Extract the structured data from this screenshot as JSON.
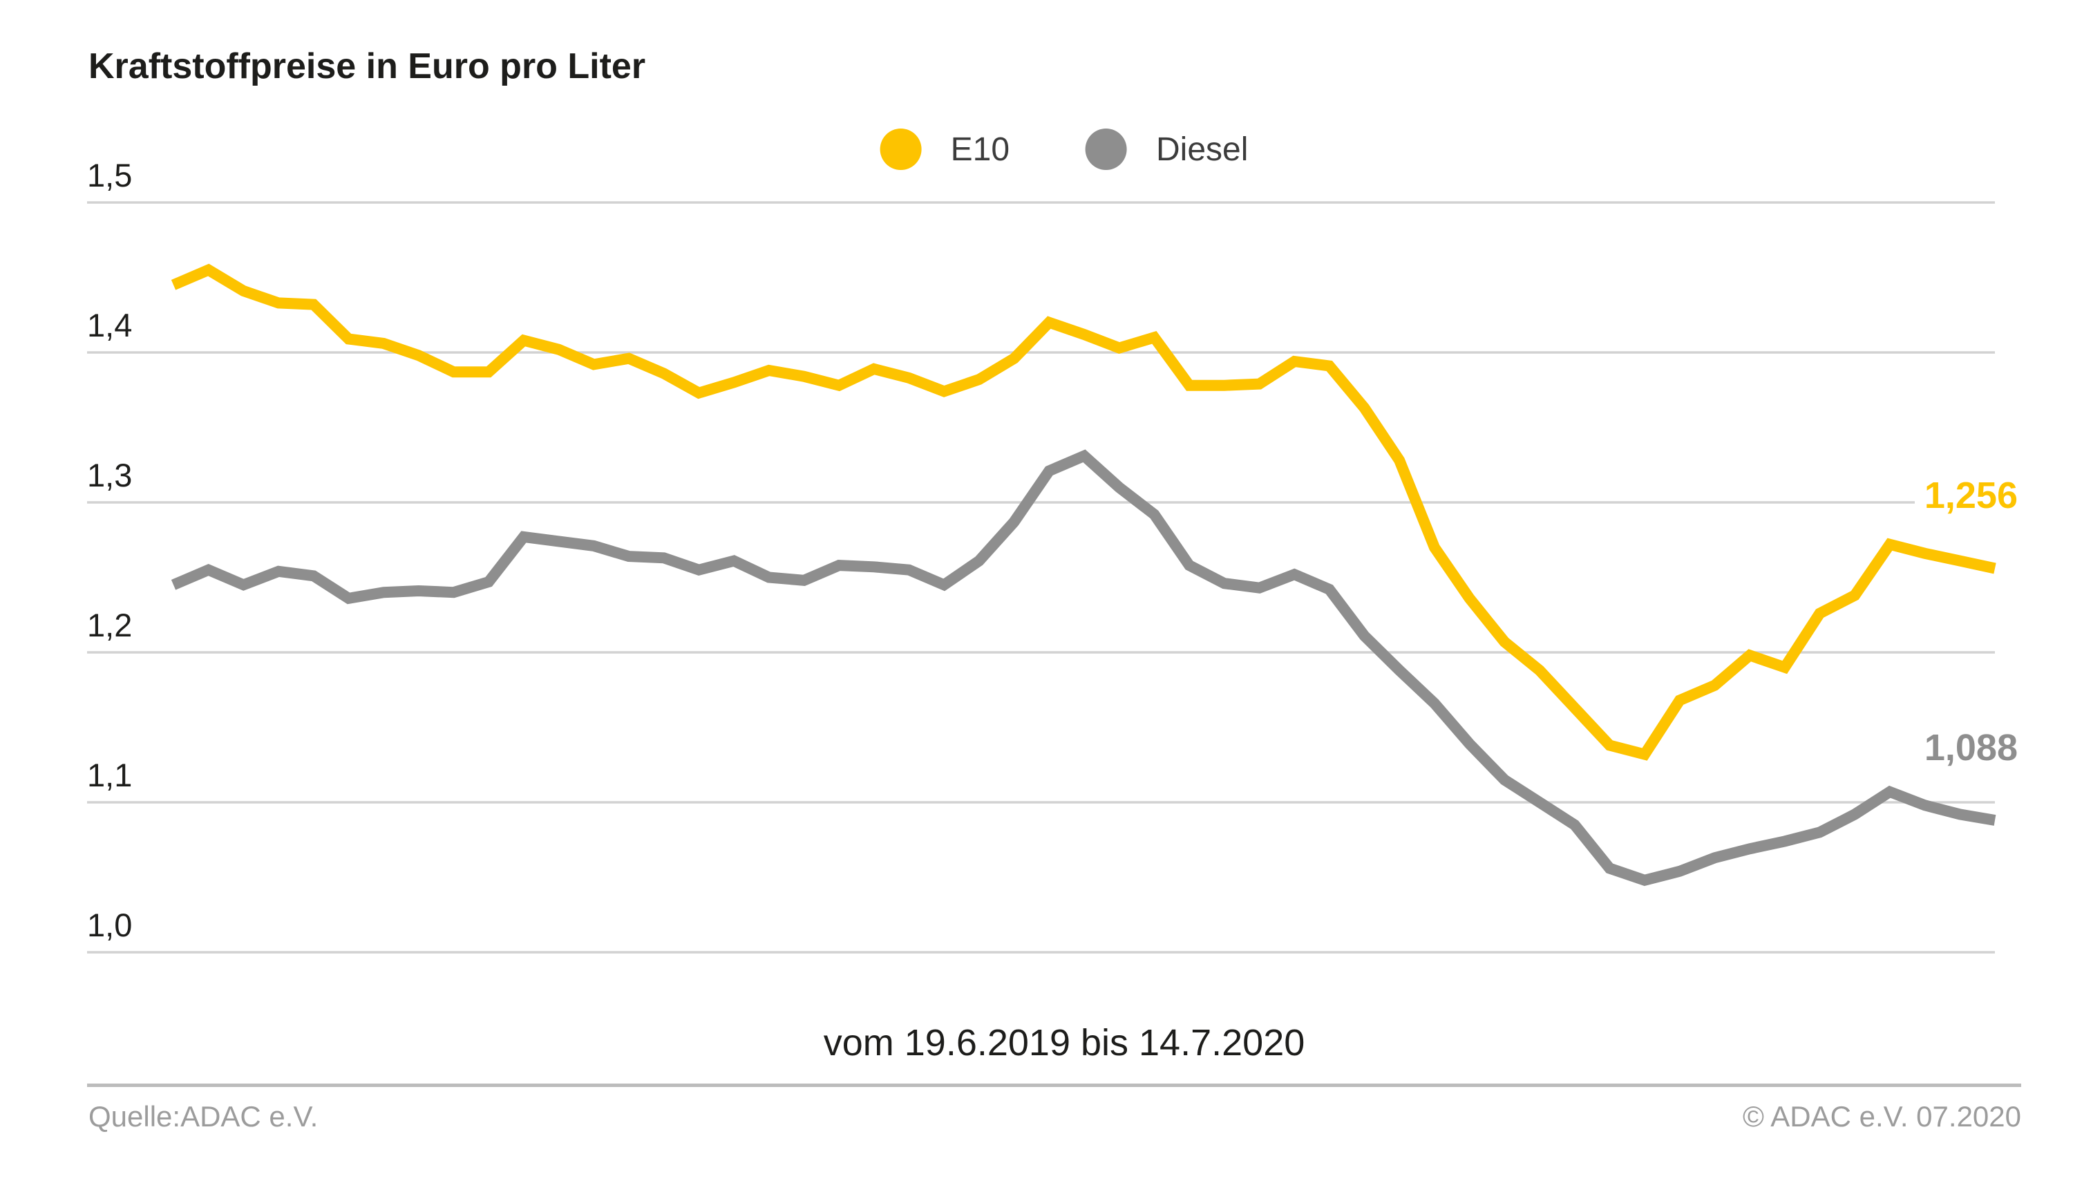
{
  "chart_data": {
    "type": "line",
    "title": "Kraftstoffpreise in Euro pro Liter",
    "xlabel": "vom 19.6.2019 bis 14.7.2020",
    "x_range": {
      "from": "19.6.2019",
      "to": "14.7.2020"
    },
    "ylabel": "Euro pro Liter",
    "ylim": [
      1.0,
      1.5
    ],
    "grid": "horizontal",
    "x_count": 53,
    "yticks": [
      {
        "label": "1,5",
        "value": 1.5
      },
      {
        "label": "1,4",
        "value": 1.4
      },
      {
        "label": "1,3",
        "value": 1.3
      },
      {
        "label": "1,2",
        "value": 1.2
      },
      {
        "label": "1,1",
        "value": 1.1
      },
      {
        "label": "1,0",
        "value": 1.0
      }
    ],
    "legend": {
      "position": "top-center"
    },
    "series": [
      {
        "name": "E10",
        "color": "#fdc300",
        "end_label": "1,256",
        "end_value": 1.256,
        "values": [
          1.445,
          1.455,
          1.441,
          1.433,
          1.432,
          1.409,
          1.406,
          1.398,
          1.387,
          1.387,
          1.408,
          1.402,
          1.392,
          1.396,
          1.386,
          1.373,
          1.38,
          1.388,
          1.384,
          1.378,
          1.389,
          1.383,
          1.374,
          1.382,
          1.396,
          1.42,
          1.412,
          1.403,
          1.41,
          1.378,
          1.378,
          1.379,
          1.394,
          1.391,
          1.363,
          1.328,
          1.27,
          1.236,
          1.207,
          1.188,
          1.163,
          1.138,
          1.132,
          1.168,
          1.178,
          1.198,
          1.19,
          1.226,
          1.238,
          1.272,
          1.266,
          1.261,
          1.256
        ]
      },
      {
        "name": "Diesel",
        "color": "#8e8e8e",
        "end_label": "1,088",
        "end_value": 1.088,
        "values": [
          1.245,
          1.255,
          1.245,
          1.254,
          1.251,
          1.236,
          1.24,
          1.241,
          1.24,
          1.247,
          1.277,
          1.274,
          1.271,
          1.264,
          1.263,
          1.255,
          1.261,
          1.25,
          1.248,
          1.258,
          1.257,
          1.255,
          1.245,
          1.261,
          1.287,
          1.321,
          1.331,
          1.31,
          1.292,
          1.258,
          1.246,
          1.243,
          1.252,
          1.242,
          1.211,
          1.188,
          1.166,
          1.139,
          1.115,
          1.1,
          1.085,
          1.056,
          1.048,
          1.054,
          1.063,
          1.069,
          1.074,
          1.08,
          1.092,
          1.107,
          1.098,
          1.092,
          1.088
        ]
      }
    ],
    "gridline_color": "#d2d2d2"
  },
  "footer": {
    "source": "Quelle:ADAC e.V.",
    "copyright": "© ADAC e.V. 07.2020"
  }
}
